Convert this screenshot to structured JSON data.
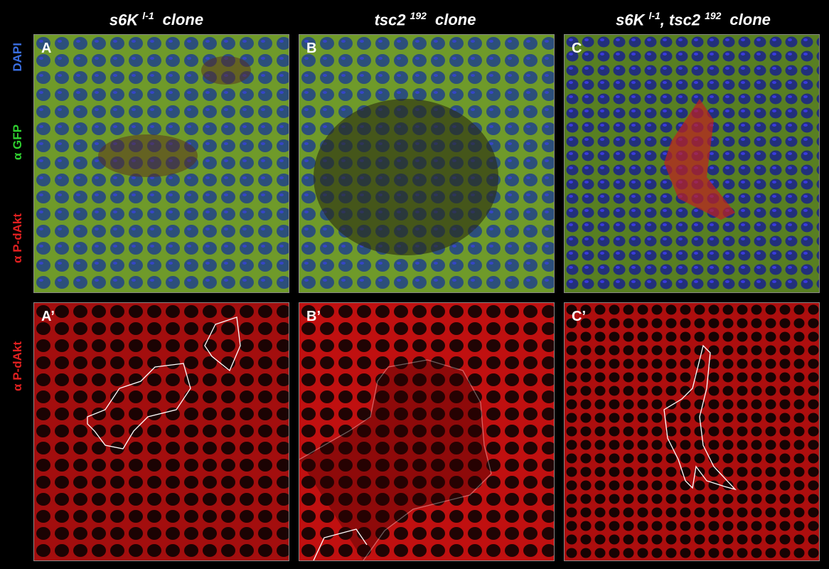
{
  "columns": [
    {
      "title": [
        {
          "text": "s6K"
        },
        {
          "text": "l-1",
          "sup": true
        },
        {
          "text": "clone"
        }
      ]
    },
    {
      "title": [
        {
          "text": "tsc2"
        },
        {
          "text": "192",
          "sup": true
        },
        {
          "text": "clone"
        }
      ]
    },
    {
      "title": [
        {
          "text": "s6K"
        },
        {
          "text": "l-1",
          "sup": true
        },
        {
          "text": ", tsc2"
        },
        {
          "text": "192",
          "sup": true
        },
        {
          "text": "clone"
        }
      ]
    }
  ],
  "rows": [
    {
      "labels": [
        {
          "text": "α P-dAkt",
          "color": "#e02020"
        },
        {
          "text": "α GFP",
          "color": "#30d030"
        },
        {
          "text": "DAPI",
          "color": "#3a6ee0"
        }
      ]
    },
    {
      "labels": [
        {
          "text": "α P-dAkt",
          "color": "#e02020"
        }
      ]
    }
  ],
  "panels": [
    [
      "A",
      "B",
      "C"
    ],
    [
      "A’",
      "B’",
      "C’"
    ]
  ]
}
